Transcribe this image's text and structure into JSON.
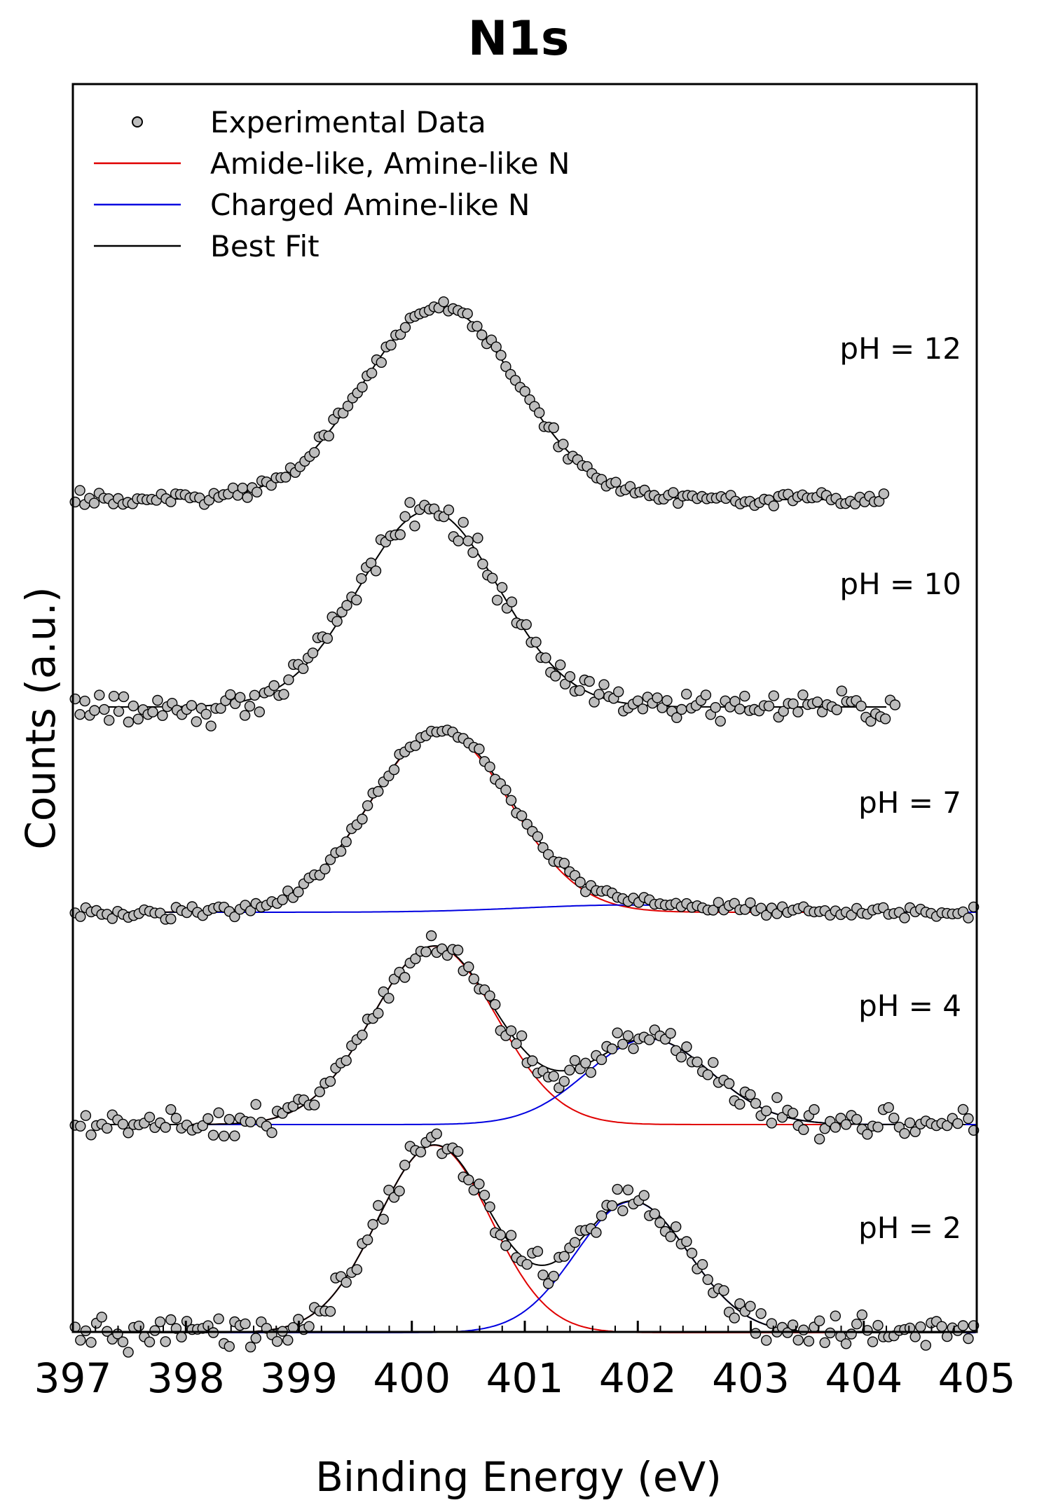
{
  "chart_data": {
    "type": "scatter",
    "title": "N1s",
    "xlabel": "Binding Energy (eV)",
    "ylabel": "Counts (a.u.)",
    "xlim": [
      397,
      405
    ],
    "x_ticks": [
      "397",
      "398",
      "399",
      "400",
      "401",
      "402",
      "403",
      "404",
      "405"
    ],
    "grid": false,
    "legend_position": "top-left",
    "legend": [
      {
        "label": "Experimental Data",
        "kind": "marker"
      },
      {
        "label": "Amide-like, Amine-like N",
        "kind": "line",
        "color": "#e00000"
      },
      {
        "label": "Charged Amine-like N",
        "kind": "line",
        "color": "#0000e0"
      },
      {
        "label": "Best Fit",
        "kind": "line",
        "color": "#000000"
      }
    ],
    "colors": {
      "amide": "#e00000",
      "charged": "#0000e0",
      "fit": "#000000",
      "marker_fill": "#bdbdbd"
    },
    "series": [
      {
        "name": "pH = 12",
        "baseline": 0.0,
        "x_range": [
          397,
          404.2
        ],
        "components": [
          {
            "name": "Best Fit",
            "center": 400.25,
            "sigma": 0.68,
            "amplitude": 1.0
          }
        ],
        "show_components": false
      },
      {
        "name": "pH = 10",
        "baseline": 0.0,
        "x_range": [
          397,
          404.3
        ],
        "components": [
          {
            "name": "Best Fit",
            "center": 400.15,
            "sigma": 0.62,
            "amplitude": 1.0
          }
        ],
        "show_components": false
      },
      {
        "name": "pH = 7",
        "baseline": 0.0,
        "x_range": [
          397,
          405
        ],
        "components": [
          {
            "name": "Amide-like, Amine-like N",
            "center": 400.25,
            "sigma": 0.62,
            "amplitude": 1.0
          },
          {
            "name": "Charged Amine-like N",
            "center": 401.9,
            "sigma": 0.9,
            "amplitude": 0.04
          }
        ],
        "show_components": true
      },
      {
        "name": "pH = 4",
        "baseline": 0.0,
        "x_range": [
          397,
          405
        ],
        "components": [
          {
            "name": "Amide-like, Amine-like N",
            "center": 400.2,
            "sigma": 0.55,
            "amplitude": 1.0
          },
          {
            "name": "Charged Amine-like N",
            "center": 402.1,
            "sigma": 0.55,
            "amplitude": 0.48
          }
        ],
        "show_components": true
      },
      {
        "name": "pH = 2",
        "baseline": 0.0,
        "x_range": [
          397,
          405
        ],
        "components": [
          {
            "name": "Amide-like, Amine-like N",
            "center": 400.2,
            "sigma": 0.5,
            "amplitude": 1.0
          },
          {
            "name": "Charged Amine-like N",
            "center": 401.95,
            "sigma": 0.5,
            "amplitude": 0.7
          }
        ],
        "show_components": true
      }
    ]
  }
}
